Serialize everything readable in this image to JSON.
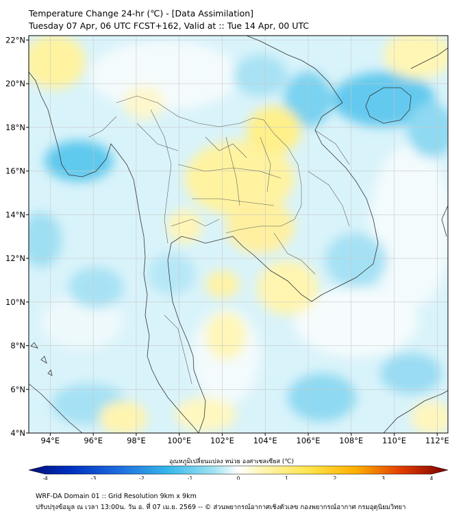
{
  "title": {
    "line1": "Temperature Change 24-hr (℃) - [Data Assimilation]",
    "line2": "Tuesday 07 Apr, 06 UTC FCST+162, Valid at :: Tue 14 Apr, 00 UTC"
  },
  "map": {
    "lon_range": [
      93,
      112.5
    ],
    "lat_range": [
      4,
      22.2
    ],
    "x_ticks": [
      "94°E",
      "96°E",
      "98°E",
      "100°E",
      "102°E",
      "104°E",
      "106°E",
      "108°E",
      "110°E",
      "112°E"
    ],
    "y_ticks": [
      "22°N",
      "20°N",
      "18°N",
      "16°N",
      "14°N",
      "12°N",
      "10°N",
      "8°N",
      "6°N",
      "4°N"
    ],
    "grid": true
  },
  "colorbar": {
    "label": "อุณหภูมิเปลี่ยนแปลง หน่วย องศาเซลเซียส (℃)",
    "ticks": [
      "-4",
      "-3",
      "-2",
      "-1",
      "0",
      "1",
      "2",
      "3",
      "4"
    ],
    "range": [
      -4,
      4
    ],
    "colors": [
      "#000f7a",
      "#0030c0",
      "#1f6fe0",
      "#35b6ea",
      "#9ee3f3",
      "#ffffff",
      "#fff5b0",
      "#ffe34a",
      "#ffb000",
      "#e03b00",
      "#7a0000"
    ]
  },
  "footer": {
    "line1": "WRF-DA Domain 01 :: Grid Resolution 9km x 9km",
    "line2": "ปรับปรุงข้อมูล ณ เวลา 13:00น. วัน อ. ที่ 07 เม.ย. 2569 -- © ส่วนพยากรณ์อากาศเชิงตัวเลข กองพยากรณ์อากาศ กรมอุตุนิยมวิทยา"
  }
}
